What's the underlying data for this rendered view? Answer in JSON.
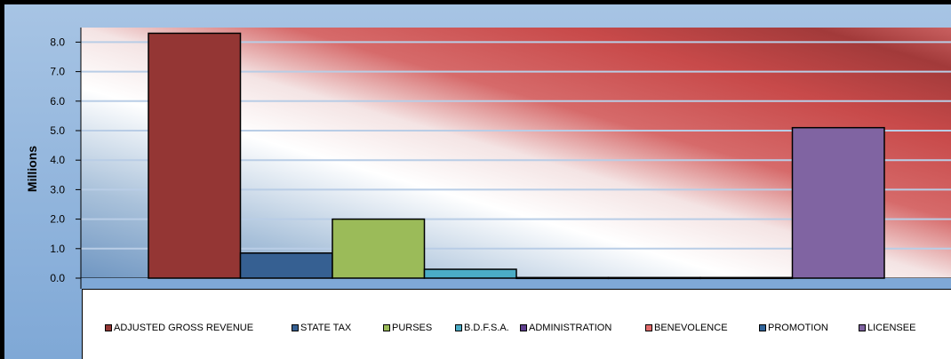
{
  "chart_data": {
    "type": "bar",
    "title": "",
    "xlabel": "",
    "ylabel": "Millions",
    "ylim": [
      0,
      8.0
    ],
    "y_ticks": [
      "0.0",
      "1.0",
      "2.0",
      "3.0",
      "4.0",
      "5.0",
      "6.0",
      "7.0",
      "8.0"
    ],
    "categories": [
      "ADJUSTED GROSS REVENUE",
      "STATE TAX",
      "PURSES",
      "B.D.F.S.A.",
      "ADMINISTRATION",
      "BENEVOLENCE",
      "PROMOTION",
      "LICENSEE"
    ],
    "values": [
      8.3,
      0.85,
      2.0,
      0.3,
      0.02,
      0.02,
      0.02,
      5.1
    ],
    "colors": [
      "#943634",
      "#366092",
      "#9BBB59",
      "#4BACC6",
      "#5F3F8F",
      "#E46C6C",
      "#31659C",
      "#8064A2"
    ],
    "grid": true,
    "legend_position": "bottom"
  },
  "legend": {
    "items": [
      {
        "label": "ADJUSTED GROSS REVENUE",
        "color": "#943634"
      },
      {
        "label": "STATE TAX",
        "color": "#366092"
      },
      {
        "label": "PURSES",
        "color": "#9BBB59"
      },
      {
        "label": "B.D.F.S.A.",
        "color": "#4BACC6"
      },
      {
        "label": "ADMINISTRATION",
        "color": "#5F3F8F"
      },
      {
        "label": "BENEVOLENCE",
        "color": "#E46C6C"
      },
      {
        "label": "PROMOTION",
        "color": "#31659C"
      },
      {
        "label": "LICENSEE",
        "color": "#8064A2"
      }
    ]
  }
}
